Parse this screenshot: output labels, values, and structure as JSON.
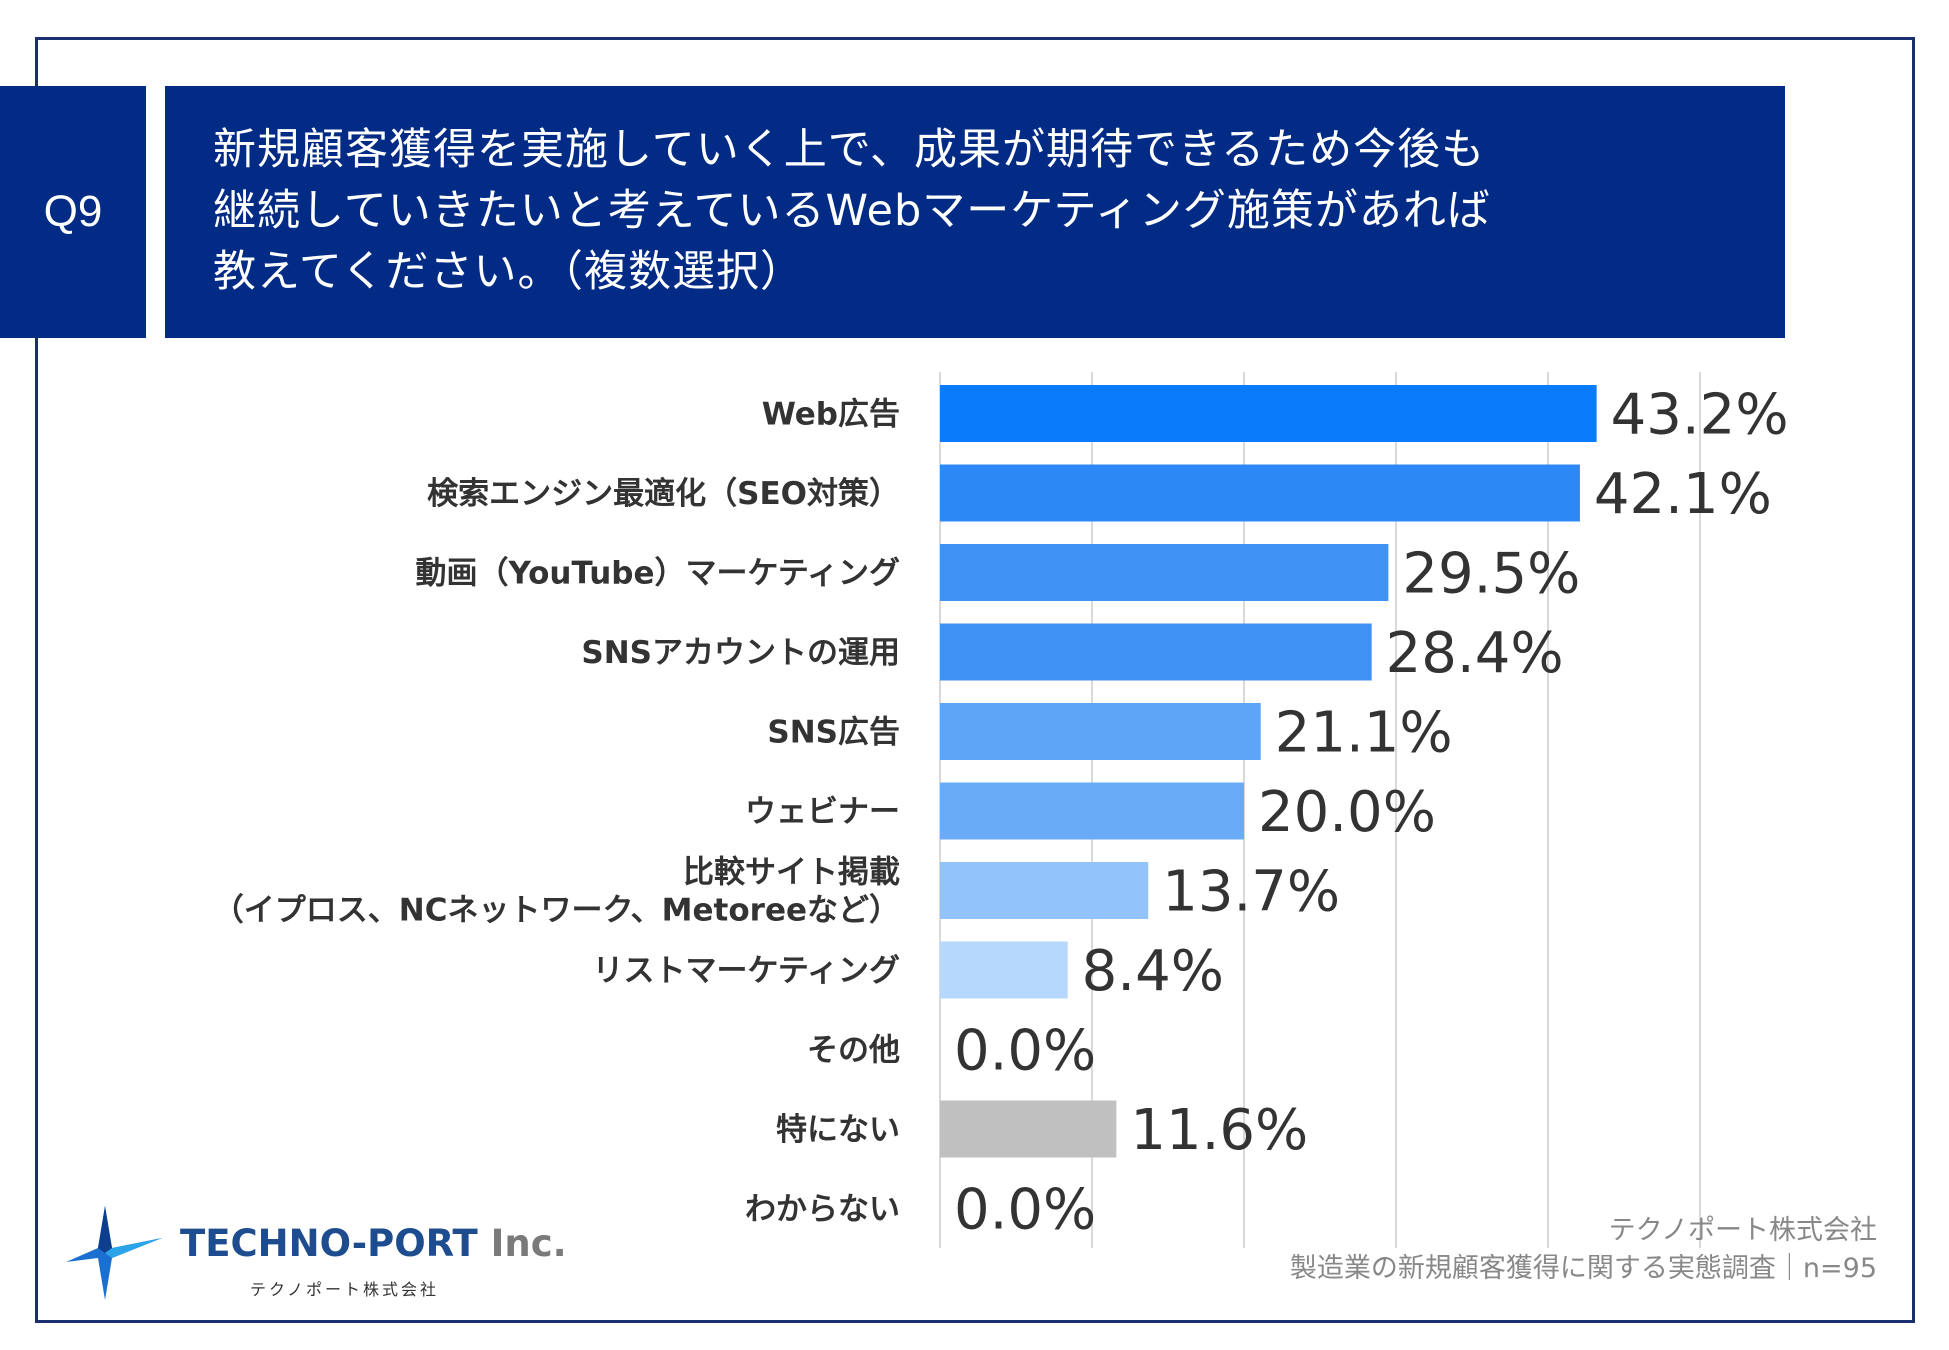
{
  "question": {
    "number": "Q9",
    "title_lines": [
      "新規顧客獲得を実施していく上で、成果が期待できるため今後も",
      "継続していきたいと考えているWebマーケティング施策があれば",
      "教えてください。（複数選択）"
    ]
  },
  "chart_data": {
    "type": "bar",
    "orientation": "horizontal",
    "categories": [
      [
        "Web広告"
      ],
      [
        "検索エンジン最適化（SEO対策）"
      ],
      [
        "動画（YouTube）マーケティング"
      ],
      [
        "SNSアカウントの運用"
      ],
      [
        "SNS広告"
      ],
      [
        "ウェビナー"
      ],
      [
        "比較サイト掲載",
        "（イプロス、NCネットワーク、Metoreeなど）"
      ],
      [
        "リストマーケティング"
      ],
      [
        "その他"
      ],
      [
        "特にない"
      ],
      [
        "わからない"
      ]
    ],
    "values": [
      43.2,
      42.1,
      29.5,
      28.4,
      21.1,
      20.0,
      13.7,
      8.4,
      0.0,
      11.6,
      0.0
    ],
    "value_labels": [
      "43.2%",
      "42.1%",
      "29.5%",
      "28.4%",
      "21.1%",
      "20.0%",
      "13.7%",
      "8.4%",
      "0.0%",
      "11.6%",
      "0.0%"
    ],
    "bar_colors": [
      "#0a7bfa",
      "#2b88f5",
      "#3f91f3",
      "#3f91f3",
      "#5ea4f7",
      "#6aabf8",
      "#93c3fb",
      "#b7d8fd",
      "#b7d8fd",
      "#c0c0c0",
      "#c0c0c0"
    ],
    "xlim": [
      0,
      50
    ],
    "gridlines": [
      0,
      10,
      20,
      30,
      40,
      50
    ],
    "grid": true
  },
  "footer": {
    "logo_name": "TECHNO-PORT",
    "logo_suffix": "Inc.",
    "logo_sub": "テクノポート株式会社",
    "source_line1": "テクノポート株式会社",
    "source_line2": "製造業の新規顧客獲得に関する実態調査｜n=95"
  },
  "colors": {
    "header_bg": "#022b86",
    "frame": "#1a2e6e"
  }
}
